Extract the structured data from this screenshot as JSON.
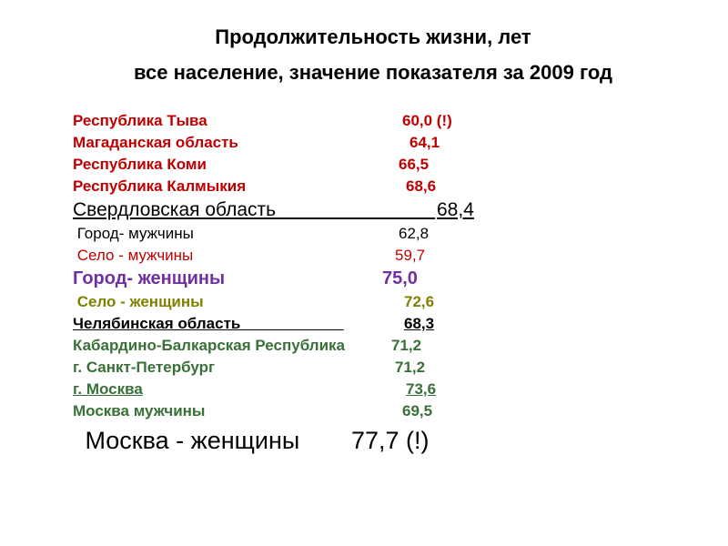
{
  "title_line1": "Продолжительность жизни, лет",
  "title_line2": "все население,  значение показателя за 2009 год",
  "colors": {
    "red": "#c00000",
    "black": "#000000",
    "purple": "#7030a0",
    "olive": "#808000",
    "green": "#387038",
    "background": "#ffffff"
  },
  "rows": [
    {
      "label": "Республика Тыва",
      "value": "60,0 (!)",
      "size": "r-small",
      "bold": true,
      "underline": false,
      "color": "c-red",
      "indent": 0,
      "vpad": 12
    },
    {
      "label": "Магаданская область",
      "value": "64,1",
      "size": "r-small",
      "bold": true,
      "underline": false,
      "color": "c-red",
      "indent": 0,
      "vpad": 20
    },
    {
      "label": "Республика Коми",
      "value": "66,5",
      "size": "r-small",
      "bold": true,
      "underline": false,
      "color": "c-red",
      "indent": 0,
      "vpad": 8
    },
    {
      "label": "Республика Калмыкия",
      "value": "68,6",
      "size": "r-small",
      "bold": true,
      "underline": false,
      "color": "c-red",
      "indent": 0,
      "vpad": 16
    },
    {
      "label": "Свердловская область                              ",
      "value": "68,4",
      "size": "r-sver",
      "bold": false,
      "underline": true,
      "color": "c-black",
      "indent": 0,
      "vpad": 0
    },
    {
      "label": " Город- мужчины",
      "value": "62,8",
      "size": "r-small",
      "bold": false,
      "underline": false,
      "color": "c-black",
      "indent": 0,
      "vpad": 8
    },
    {
      "label": " Село - мужчины",
      "value": "59,7",
      "size": "r-small",
      "bold": false,
      "underline": false,
      "color": "c-red",
      "indent": 0,
      "vpad": 4
    },
    {
      "label": "Город- женщины",
      "value": "75,0",
      "size": "r-med",
      "bold": true,
      "underline": false,
      "color": "c-purple",
      "indent": 0,
      "vpad": 0
    },
    {
      "label": " Село - женщины",
      "value": "72,6",
      "size": "r-small",
      "bold": true,
      "underline": false,
      "color": "c-olive",
      "indent": 0,
      "vpad": 14
    },
    {
      "label": "Челябинская область                        ",
      "value": "68,3",
      "size": "r-small",
      "bold": true,
      "underline": true,
      "color": "c-black",
      "indent": 0,
      "vpad": 14
    },
    {
      "label": "Кабардино-Балкарская Республика",
      "value": "71,2",
      "size": "r-small",
      "bold": true,
      "underline": false,
      "color": "c-green",
      "indent": 0,
      "vpad": -16
    },
    {
      "label": "г. Санкт-Петербург",
      "value": "71,2",
      "size": "r-small",
      "bold": true,
      "underline": false,
      "color": "c-green",
      "indent": 0,
      "vpad": 4
    },
    {
      "label": "г. Москва",
      "value": "73,6",
      "size": "r-small",
      "bold": true,
      "underline": true,
      "color": "c-green",
      "indent": 0,
      "vpad": 16
    },
    {
      "label": "Москва мужчины",
      "value": "69,5",
      "size": "r-small",
      "bold": true,
      "underline": false,
      "color": "c-green",
      "indent": 0,
      "vpad": 12
    },
    {
      "label": " Москва - женщины",
      "value": "77,7 (!)",
      "size": "r-big",
      "bold": false,
      "underline": false,
      "color": "c-black",
      "indent": 0,
      "vpad": 0
    }
  ]
}
